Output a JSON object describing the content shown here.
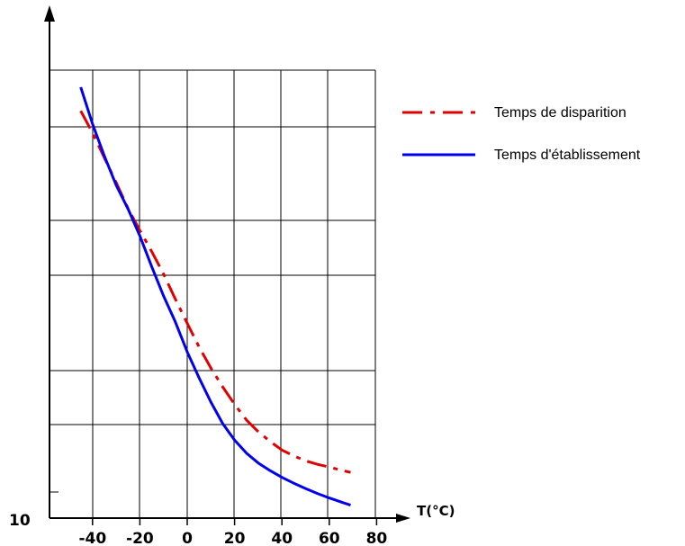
{
  "chart_data": {
    "type": "line",
    "title": "",
    "xlabel": "T(°C)",
    "ylabel": "",
    "y_tick_labels": [
      "10"
    ],
    "xlim": [
      -50,
      80
    ],
    "x_ticks": [
      -40,
      -20,
      0,
      20,
      40,
      60,
      80
    ],
    "x_tick_labels": [
      "-40",
      "-20",
      "0",
      "20",
      "40",
      "60",
      "80"
    ],
    "ylim": [
      0,
      100
    ],
    "grid": true,
    "legend_position": "right",
    "series": [
      {
        "name": "Temps de disparition",
        "color": "#e00000",
        "style": "dash-dot",
        "x": [
          -45,
          -40,
          -35,
          -30,
          -25,
          -20,
          -15,
          -10,
          -5,
          0,
          5,
          10,
          15,
          20,
          25,
          30,
          35,
          40,
          45,
          50,
          55,
          60,
          65,
          69
        ],
        "y": [
          90.9,
          86.0,
          80.4,
          74.9,
          69.1,
          64.2,
          59.5,
          54.5,
          48.9,
          43.5,
          38.2,
          33.5,
          29.3,
          25.4,
          21.9,
          19.3,
          17.1,
          15.2,
          13.9,
          12.8,
          12.0,
          11.4,
          10.7,
          10.2
        ]
      },
      {
        "name": "Temps d'établissement",
        "color": "#0000ee",
        "style": "solid",
        "x": [
          -45,
          -40,
          -35,
          -30,
          -25,
          -20,
          -15,
          -10,
          -5,
          0,
          5,
          10,
          15,
          20,
          25,
          30,
          35,
          40,
          45,
          50,
          55,
          60,
          65,
          69
        ],
        "y": [
          96.2,
          88.0,
          80.8,
          74.3,
          69.0,
          63.0,
          56.1,
          49.6,
          43.8,
          37.1,
          31.3,
          25.9,
          21.1,
          17.4,
          14.5,
          12.3,
          10.6,
          9.1,
          7.8,
          6.6,
          5.5,
          4.5,
          3.6,
          2.9
        ]
      }
    ]
  }
}
